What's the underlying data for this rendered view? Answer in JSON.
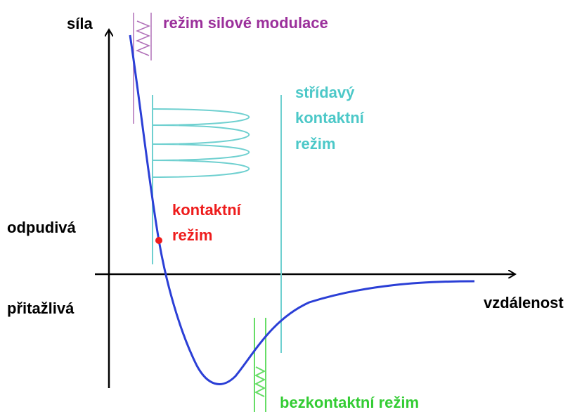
{
  "axes": {
    "y_label": "síla",
    "x_label": "vzdálenost",
    "repulsive": "odpudivá",
    "attractive": "přitažlivá"
  },
  "modes": {
    "force_modulation": {
      "label": "režim silové modulace"
    },
    "tapping": {
      "label_lines": [
        "střídavý",
        "kontaktní",
        "režim"
      ]
    },
    "contact": {
      "label_lines": [
        "kontaktní",
        "režim"
      ]
    },
    "non_contact": {
      "label": "bezkontaktní režim"
    }
  }
}
